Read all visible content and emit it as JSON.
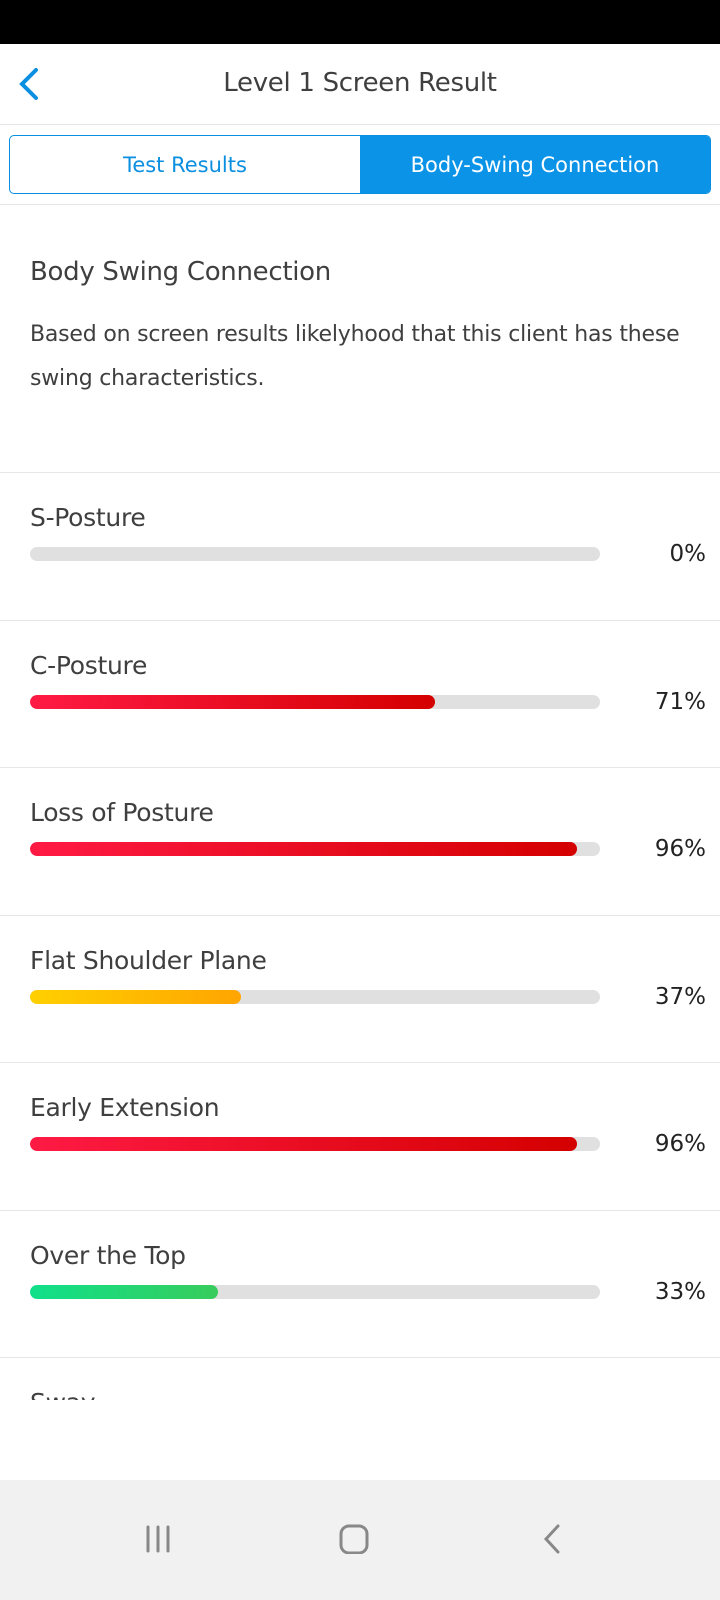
{
  "header": {
    "title": "Level 1 Screen Result",
    "back_icon": "chevron-left-icon"
  },
  "tabs": [
    {
      "label": "Test Results",
      "active": false
    },
    {
      "label": "Body-Swing Connection",
      "active": true
    }
  ],
  "intro": {
    "title": "Body Swing Connection",
    "description": "Based on screen results likelyhood that this client has these swing characteristics."
  },
  "colors": {
    "accent": "#0b93e8",
    "red": [
      "#ff1a44",
      "#d40000"
    ],
    "yellow": [
      "#ffd000",
      "#ffa500"
    ],
    "green": [
      "#10e08a",
      "#38cc5c"
    ],
    "track": "#e0e0e0"
  },
  "items": [
    {
      "label": "S-Posture",
      "value": 0,
      "display": "0%",
      "color": "red"
    },
    {
      "label": "C-Posture",
      "value": 71,
      "display": "71%",
      "color": "red"
    },
    {
      "label": "Loss of Posture",
      "value": 96,
      "display": "96%",
      "color": "red"
    },
    {
      "label": "Flat Shoulder Plane",
      "value": 37,
      "display": "37%",
      "color": "yellow"
    },
    {
      "label": "Early Extension",
      "value": 96,
      "display": "96%",
      "color": "red"
    },
    {
      "label": "Over the Top",
      "value": 33,
      "display": "33%",
      "color": "green"
    },
    {
      "label": "Sway"
    }
  ],
  "navbar": [
    "recent-apps-icon",
    "home-icon",
    "back-icon"
  ]
}
